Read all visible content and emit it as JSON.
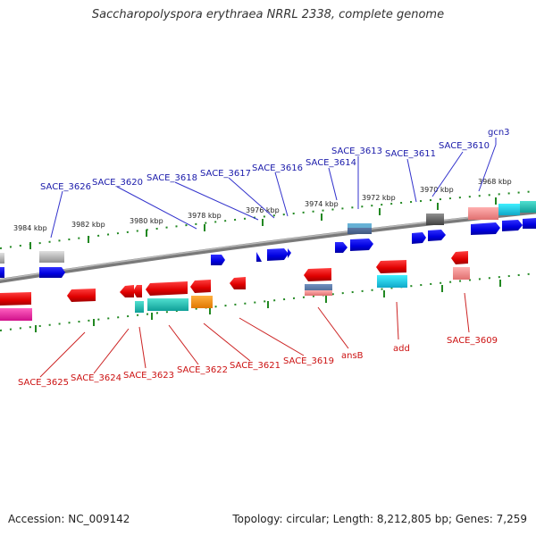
{
  "title": "Saccharopolyspora erythraea NRRL 2338, complete genome",
  "footer": {
    "accession": "Accession: NC_009142",
    "summary": "Topology: circular; Length: 8,212,805 bp; Genes: 7,259"
  },
  "ticks": [
    "3968 kbp",
    "3970 kbp",
    "3972 kbp",
    "3974 kbp",
    "3976 kbp",
    "3978 kbp",
    "3980 kbp",
    "3982 kbp",
    "3984 kbp"
  ],
  "genes_top": [
    "gcn3",
    "SACE_3610",
    "SACE_3611",
    "SACE_3613",
    "SACE_3614",
    "SACE_3616",
    "SACE_3617",
    "SACE_3618",
    "SACE_3620",
    "SACE_3626"
  ],
  "genes_bottom": [
    "SACE_3609",
    "add",
    "ansB",
    "SACE_3619",
    "SACE_3621",
    "SACE_3622",
    "SACE_3623",
    "SACE_3624",
    "SACE_3625"
  ],
  "colors": {
    "forward_label": "#1a1aaa",
    "reverse_label": "#cc1111",
    "tick": "#228822",
    "backbone": "#808080"
  }
}
